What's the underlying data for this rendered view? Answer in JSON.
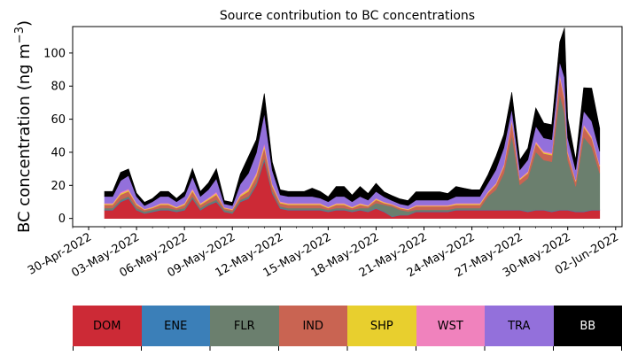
{
  "chart_data": {
    "type": "area",
    "stacked": true,
    "title": "Source contribution to BC concentrations",
    "ylabel_main": "BC concentration (ng m",
    "ylabel_sup": "−3",
    "ylabel_end": ")",
    "xlabel": "",
    "ylim": [
      -5,
      116
    ],
    "yticks": [
      0,
      20,
      40,
      60,
      80,
      100
    ],
    "x_range_days": [
      -1.0,
      33.4
    ],
    "xtick_labels": [
      "30-Apr-2022",
      "03-May-2022",
      "06-May-2022",
      "09-May-2022",
      "12-May-2022",
      "15-May-2022",
      "18-May-2022",
      "21-May-2022",
      "24-May-2022",
      "27-May-2022",
      "30-May-2022",
      "02-Jun-2022"
    ],
    "xtick_days": [
      0,
      3,
      6,
      9,
      12,
      15,
      18,
      21,
      24,
      27,
      30,
      33
    ],
    "x_units": "days since 30-Apr-2022",
    "x": [
      1.0,
      1.5,
      2.0,
      2.5,
      3.0,
      3.5,
      4.0,
      4.5,
      5.0,
      5.5,
      6.0,
      6.5,
      7.0,
      7.5,
      8.0,
      8.5,
      9.0,
      9.5,
      10.0,
      10.5,
      11.0,
      11.5,
      12.0,
      12.5,
      13.0,
      13.5,
      14.0,
      14.5,
      15.0,
      15.5,
      16.0,
      16.5,
      17.0,
      17.5,
      18.0,
      18.5,
      19.0,
      19.5,
      20.0,
      20.5,
      21.0,
      21.5,
      22.0,
      22.5,
      23.0,
      23.5,
      24.0,
      24.5,
      25.0,
      25.5,
      26.0,
      26.5,
      27.0,
      27.5,
      28.0,
      28.5,
      29.0,
      29.5,
      29.8,
      30.0,
      30.5,
      31.0,
      31.5,
      32.0
    ],
    "series": [
      {
        "name": "DOM",
        "color": "#cc2a36",
        "values": [
          5,
          5,
          10,
          12,
          5,
          3,
          4,
          5,
          5,
          4,
          5,
          12,
          5,
          8,
          10,
          4,
          3,
          10,
          12,
          20,
          35,
          15,
          6,
          5,
          5,
          5,
          5,
          5,
          4,
          5,
          5,
          4,
          5,
          4,
          6,
          4,
          1,
          2,
          2,
          4,
          4,
          4,
          4,
          4,
          5,
          5,
          5,
          5,
          5,
          5,
          5,
          5,
          5,
          4,
          5,
          5,
          4,
          5,
          5,
          5,
          4,
          4,
          5,
          5
        ]
      },
      {
        "name": "ENE",
        "color": "#3b7fb8",
        "values": [
          0.3,
          0.3,
          0.4,
          0.4,
          0.3,
          0.2,
          0.3,
          0.3,
          0.3,
          0.3,
          0.3,
          0.4,
          0.3,
          0.3,
          0.4,
          0.2,
          0.2,
          0.3,
          0.4,
          0.5,
          0.8,
          0.4,
          0.3,
          0.3,
          0.3,
          0.3,
          0.3,
          0.3,
          0.3,
          0.3,
          0.3,
          0.3,
          0.3,
          0.3,
          0.3,
          0.3,
          0.2,
          0.2,
          0.2,
          0.3,
          0.3,
          0.3,
          0.3,
          0.3,
          0.3,
          0.3,
          0.3,
          0.3,
          0.3,
          0.3,
          0.3,
          0.3,
          0.3,
          0.3,
          0.3,
          0.3,
          0.3,
          0.3,
          0.3,
          0.3,
          0.3,
          0.3,
          0.3,
          0.3
        ]
      },
      {
        "name": "FLR",
        "color": "#6b7f6e",
        "values": [
          1,
          1,
          1,
          1,
          1,
          1,
          1,
          1,
          1,
          1,
          1,
          1,
          1,
          1,
          1,
          1,
          1,
          1,
          1,
          1,
          1,
          1,
          1,
          1,
          1,
          1,
          1,
          1,
          1,
          1,
          1,
          1,
          1,
          2,
          3,
          4,
          6,
          3,
          2,
          1,
          1,
          1,
          1,
          1,
          1,
          1,
          1,
          1,
          8,
          12,
          22,
          45,
          15,
          20,
          35,
          30,
          30,
          70,
          58,
          30,
          15,
          45,
          38,
          22
        ]
      },
      {
        "name": "IND",
        "color": "#c96452",
        "values": [
          2,
          2,
          3,
          3,
          2,
          1,
          1,
          2,
          2,
          1,
          2,
          3,
          2,
          2,
          3,
          1,
          1,
          2,
          3,
          4,
          6,
          3,
          2,
          2,
          2,
          2,
          2,
          2,
          1,
          2,
          2,
          1,
          2,
          1,
          2,
          1,
          1,
          1,
          1,
          2,
          2,
          2,
          2,
          2,
          2,
          2,
          2,
          2,
          2,
          3,
          4,
          8,
          3,
          3,
          5,
          4,
          4,
          10,
          8,
          4,
          3,
          6,
          5,
          4
        ]
      },
      {
        "name": "SHP",
        "color": "#e8cf2e",
        "values": [
          0.5,
          0.5,
          0.7,
          0.7,
          0.5,
          0.3,
          0.4,
          0.5,
          0.5,
          0.4,
          0.5,
          0.8,
          0.5,
          0.6,
          0.8,
          0.3,
          0.3,
          0.7,
          0.9,
          1.0,
          1.2,
          0.8,
          0.5,
          0.5,
          0.5,
          0.5,
          0.5,
          0.5,
          0.4,
          0.5,
          0.5,
          0.4,
          0.5,
          0.4,
          0.5,
          0.4,
          0.3,
          0.3,
          0.3,
          0.4,
          0.4,
          0.4,
          0.4,
          0.4,
          0.5,
          0.5,
          0.5,
          0.5,
          0.5,
          0.5,
          0.6,
          0.8,
          0.5,
          0.5,
          0.6,
          0.6,
          0.6,
          0.9,
          0.8,
          0.6,
          0.5,
          0.7,
          0.6,
          0.5
        ]
      },
      {
        "name": "WST",
        "color": "#f082bd",
        "values": [
          0.5,
          0.5,
          0.8,
          0.8,
          0.5,
          0.3,
          0.4,
          0.5,
          0.5,
          0.4,
          0.5,
          1.0,
          0.5,
          0.6,
          0.9,
          0.3,
          0.3,
          0.8,
          1.0,
          1.2,
          1.5,
          0.9,
          0.5,
          0.5,
          0.5,
          0.5,
          0.5,
          0.5,
          0.4,
          0.5,
          0.5,
          0.4,
          0.5,
          0.4,
          0.5,
          0.4,
          0.3,
          0.3,
          0.3,
          0.4,
          0.4,
          0.4,
          0.4,
          0.4,
          0.5,
          0.5,
          0.5,
          0.5,
          0.5,
          0.6,
          0.8,
          1.2,
          0.6,
          0.7,
          0.9,
          0.8,
          0.8,
          1.5,
          1.2,
          0.9,
          0.6,
          1.0,
          0.9,
          0.7
        ]
      },
      {
        "name": "TRA",
        "color": "#9370db",
        "values": [
          4,
          4,
          7,
          8,
          4,
          2,
          3,
          4,
          4,
          3,
          4,
          7,
          4,
          5,
          8,
          2,
          2,
          6,
          9,
          12,
          18,
          8,
          4,
          4,
          4,
          4,
          4,
          3,
          3,
          4,
          4,
          3,
          4,
          3,
          4,
          3,
          2,
          2,
          2,
          3,
          3,
          3,
          3,
          3,
          4,
          4,
          4,
          4,
          5,
          8,
          10,
          6,
          5,
          7,
          9,
          8,
          8,
          7,
          12,
          8,
          6,
          8,
          9,
          8
        ]
      },
      {
        "name": "BB",
        "color": "#000000",
        "values": [
          3,
          3,
          5,
          4,
          2,
          2,
          2,
          3,
          3,
          2,
          3,
          5,
          3,
          4,
          6,
          2,
          2,
          6,
          10,
          8,
          12,
          5,
          3,
          3,
          3,
          3,
          5,
          4,
          3,
          6,
          6,
          4,
          6,
          4,
          5,
          3,
          3,
          3,
          3,
          5,
          5,
          5,
          5,
          4,
          6,
          5,
          4,
          4,
          5,
          8,
          8,
          10,
          6,
          7,
          11,
          9,
          9,
          12,
          30,
          12,
          6,
          14,
          20,
          14
        ]
      }
    ]
  }
}
